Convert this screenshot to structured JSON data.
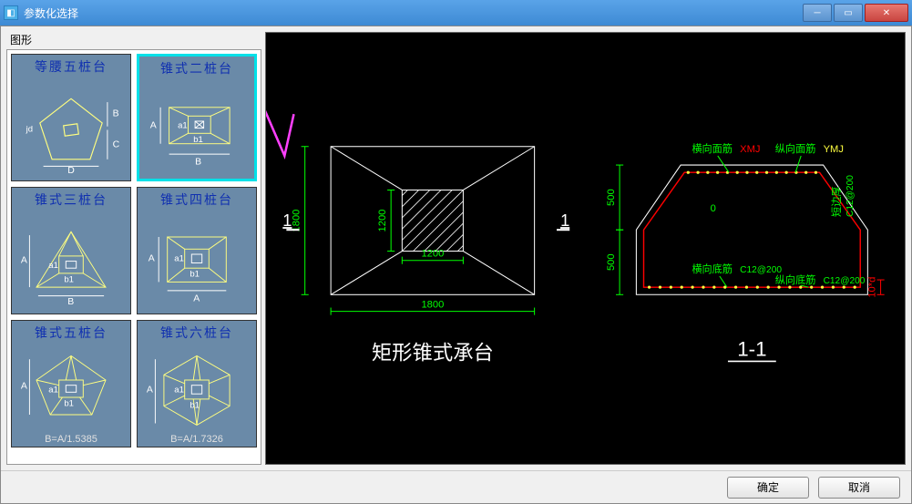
{
  "window": {
    "title": "参数化选择",
    "icon_name": "app-icon",
    "close_glyph": "✕",
    "max_glyph": "▭",
    "min_glyph": "─"
  },
  "left": {
    "fieldset_label": "图形",
    "thumbs": [
      {
        "id": "t0",
        "title": "等腰五桩台",
        "labels": {
          "A": "jd",
          "B": "B",
          "C": "C",
          "D": "D"
        },
        "footer": ""
      },
      {
        "id": "t1",
        "title": "锥式二桩台",
        "labels": {
          "A": "A",
          "a1": "a1",
          "b1": "b1",
          "B": "B"
        },
        "footer": "",
        "selected": true
      },
      {
        "id": "t2",
        "title": "锥式三桩台",
        "labels": {
          "A": "A",
          "a1": "a1",
          "b1": "b1",
          "B": "B"
        },
        "footer": ""
      },
      {
        "id": "t3",
        "title": "锥式四桩台",
        "labels": {
          "A": "A",
          "a1": "a1",
          "b1": "b1",
          "A2": "A"
        },
        "footer": ""
      },
      {
        "id": "t4",
        "title": "锥式五桩台",
        "labels": {
          "A": "A",
          "a1": "a1",
          "b1": "b1"
        },
        "footer": "B=A/1.5385"
      },
      {
        "id": "t5",
        "title": "锥式六桩台",
        "labels": {
          "A": "A",
          "a1": "a1",
          "b1": "b1"
        },
        "footer": "B=A/1.7326"
      }
    ]
  },
  "preview": {
    "plan": {
      "title": "矩形锥式承台",
      "outer_w": 1800,
      "outer_h": 1800,
      "inner_w": 1200,
      "inner_h": 1200,
      "section_mark": "1",
      "dim_outer_w_label": "1800",
      "dim_outer_h_label": "1800",
      "dim_inner_w_label": "1200",
      "dim_inner_h_label": "1200",
      "colors": {
        "line": "#ffffff",
        "hatch": "#ffffff",
        "dim": "#00ff00",
        "section": "#ffffff"
      }
    },
    "section": {
      "title": "1-1",
      "dims_v": [
        "500",
        "500"
      ],
      "dim_h_right": "10*d",
      "labels": {
        "top_l": "横向面筋",
        "top_l_code": "XMJ",
        "top_r": "纵向面筋",
        "top_r_code": "YMJ",
        "mid": "0",
        "right_v": "短边厚",
        "right_v_code": "C12@200",
        "bot_l": "横向底筋",
        "bot_l_code": "C12@200",
        "bot_r": "纵向底筋",
        "bot_r_code": "C12@200"
      },
      "colors": {
        "outline": "#ffffff",
        "rebar_line": "#ff0000",
        "rebar_dot": "#ffff40",
        "dim": "#00ff00",
        "label": "#00ff00",
        "code": "#ff0000",
        "code_alt": "#00ff00"
      }
    },
    "annotation_arrow_color": "#ff40ff"
  },
  "buttons": {
    "ok": "确定",
    "cancel": "取消"
  },
  "palette": {
    "titlebar_from": "#5aa3e8",
    "titlebar_to": "#3d8ad4",
    "thumb_bg": "#6a8aa8",
    "thumb_title": "#1030b0",
    "selected_border": "#00e0e8",
    "preview_bg": "#000000"
  }
}
